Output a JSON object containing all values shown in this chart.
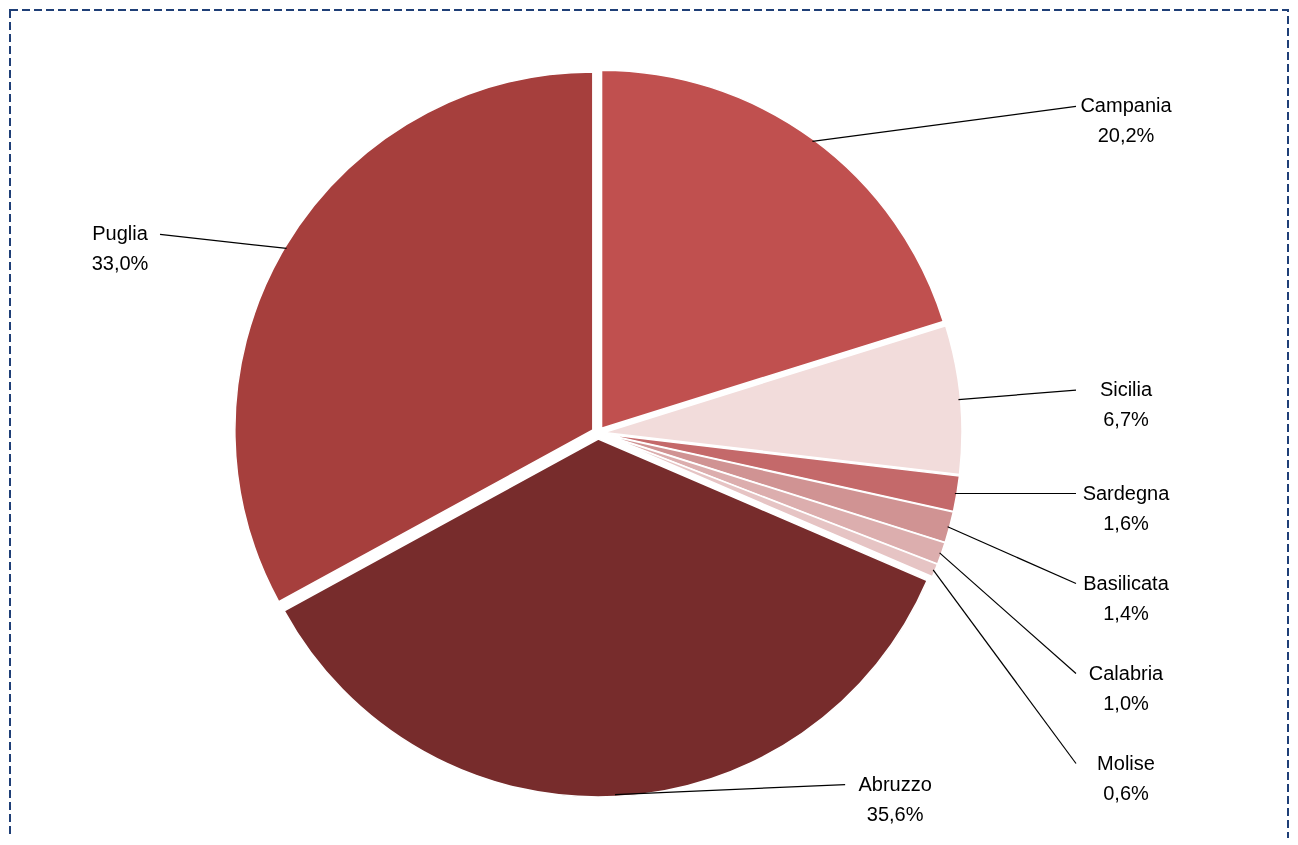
{
  "chart_data": {
    "type": "pie",
    "categories": [
      "Campania",
      "Sicilia",
      "Sardegna",
      "Basilicata",
      "Calabria",
      "Molise",
      "Abruzzo",
      "Puglia"
    ],
    "values": [
      20.2,
      6.7,
      1.6,
      1.4,
      1.0,
      0.6,
      35.6,
      33.0
    ],
    "value_labels": [
      "20,2%",
      "6,7%",
      "1,6%",
      "1,4%",
      "1,0%",
      "0,6%",
      "35,6%",
      "33,0%"
    ],
    "colors": [
      "#c0504f",
      "#f2dcdb",
      "#c4696a",
      "#d09393",
      "#dcaeae",
      "#e6c4c4",
      "#772c2c",
      "#a63f3d"
    ],
    "data_labels": false
  }
}
